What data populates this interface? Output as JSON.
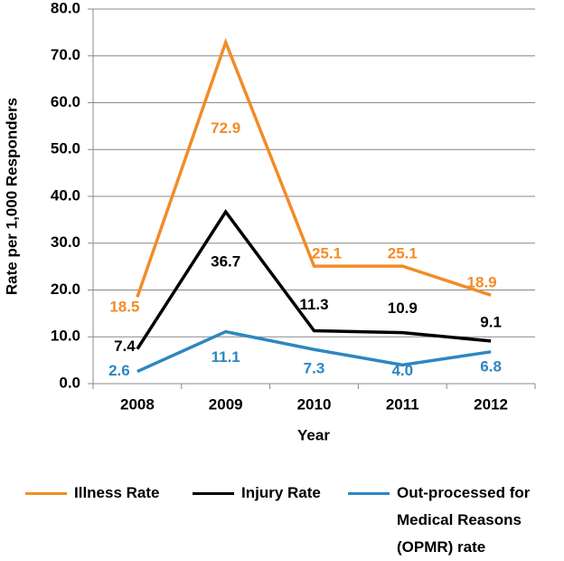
{
  "chart_data": {
    "type": "line",
    "categories": [
      "2008",
      "2009",
      "2010",
      "2011",
      "2012"
    ],
    "x_label": "Year",
    "y_label": "Rate per 1,000 Responders",
    "series": [
      {
        "name": "Illness Rate",
        "color": "#f28c28",
        "values": [
          18.5,
          72.9,
          25.1,
          25.1,
          18.9
        ]
      },
      {
        "name": "Injury Rate",
        "color": "#000000",
        "values": [
          7.4,
          36.7,
          11.3,
          10.9,
          9.1
        ]
      },
      {
        "name": "Out-processed for Medical Reasons (OPMR) rate",
        "color": "#2e86c1",
        "values": [
          2.6,
          11.1,
          7.3,
          4.0,
          6.8
        ],
        "value_labels": [
          "2.6",
          "11.1",
          "7.3",
          "4.0",
          "6.8"
        ]
      }
    ],
    "ylim": [
      0,
      80
    ],
    "yticks": [
      {
        "value": 0,
        "label": "0.0"
      },
      {
        "value": 10,
        "label": "10.0"
      },
      {
        "value": 20,
        "label": "20.0"
      },
      {
        "value": 30,
        "label": "30.0"
      },
      {
        "value": 40,
        "label": "40.0"
      },
      {
        "value": 50,
        "label": "50.0"
      },
      {
        "value": 60,
        "label": "60.0"
      },
      {
        "value": 70,
        "label": "70.0"
      },
      {
        "value": 80,
        "label": "80.0"
      }
    ],
    "grid": true
  }
}
